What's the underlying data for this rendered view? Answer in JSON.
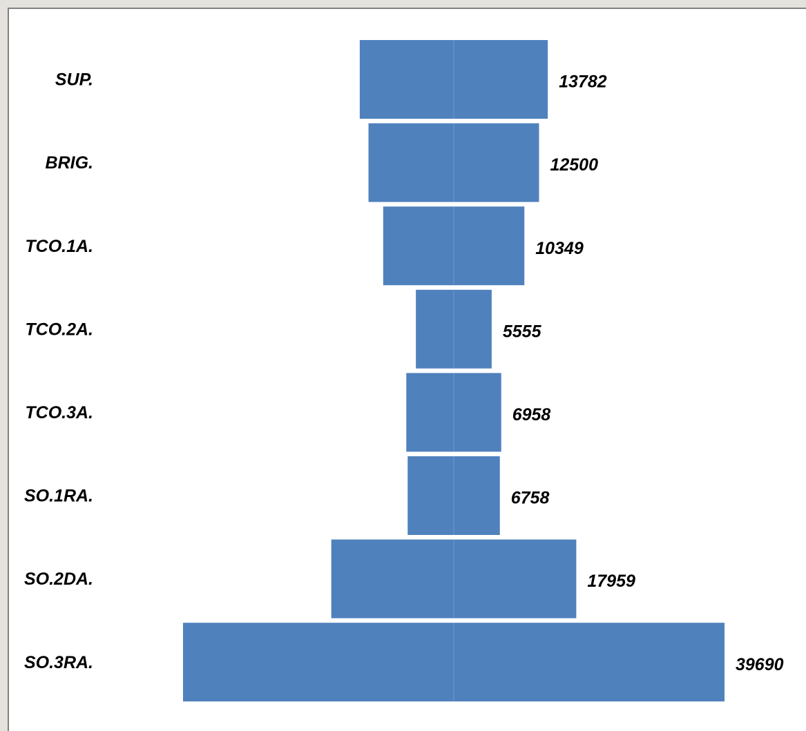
{
  "chart_data": {
    "type": "funnel",
    "categories": [
      "SUP.",
      "BRIG.",
      "TCO.1A.",
      "TCO.2A.",
      "TCO.3A.",
      "SO.1RA.",
      "SO.2DA.",
      "SO.3RA."
    ],
    "values": [
      13782,
      12500,
      10349,
      5555,
      6958,
      6758,
      17959,
      39690
    ],
    "color": "#4f81bd"
  }
}
